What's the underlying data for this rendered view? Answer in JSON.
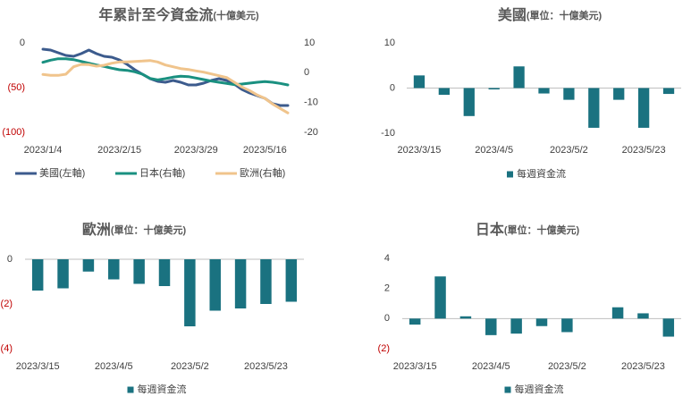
{
  "chart_data": [
    {
      "type": "line",
      "title": "年累計至今資金流",
      "subtitle": "(十億美元)",
      "categories": [
        "2023/1/4",
        null,
        null,
        null,
        null,
        null,
        null,
        null,
        null,
        null,
        "2023/2/15",
        null,
        null,
        null,
        null,
        null,
        null,
        null,
        null,
        null,
        "2023/3/29",
        null,
        null,
        null,
        null,
        null,
        null,
        null,
        null,
        "2023/5/16",
        null,
        null,
        null
      ],
      "series": [
        {
          "name": "美國(左軸)",
          "color": "#3c5b8d",
          "axis": "y",
          "values": [
            -7,
            -8,
            -11,
            -14,
            -15,
            -12,
            -8,
            -12,
            -15,
            -16,
            -19,
            -24,
            -30,
            -35,
            -40,
            -43,
            -44,
            -42,
            -44,
            -47,
            -47,
            -45,
            -42,
            -40,
            -42,
            -46,
            -52,
            -56,
            -59,
            -62,
            -68,
            -70,
            -70
          ]
        },
        {
          "name": "日本(右軸)",
          "color": "#1a9080",
          "axis": "y2",
          "values": [
            3.5,
            4.2,
            4.7,
            4.7,
            4.4,
            3.8,
            3.2,
            2.6,
            2.1,
            1.5,
            1.0,
            0.8,
            0.3,
            -0.5,
            -1.9,
            -2.4,
            -2.0,
            -1.5,
            -1.2,
            -1.3,
            -1.8,
            -2.3,
            -2.8,
            -3.2,
            -3.6,
            -4.0,
            -3.8,
            -3.5,
            -3.2,
            -3.0,
            -3.2,
            -3.6,
            -4.1
          ]
        },
        {
          "name": "歐洲(右軸)",
          "color": "#f0c48c",
          "axis": "y2",
          "values": [
            -0.6,
            -0.9,
            -0.9,
            -0.5,
            2.0,
            2.8,
            2.7,
            2.2,
            2.5,
            3.2,
            3.6,
            3.6,
            3.8,
            3.9,
            4.1,
            3.6,
            2.6,
            2.0,
            1.4,
            1.1,
            0.6,
            0.2,
            -0.4,
            -1.0,
            -1.6,
            -3.2,
            -4.8,
            -6.0,
            -7.5,
            -8.6,
            -10.5,
            -12,
            -13.5
          ]
        }
      ],
      "ylim": [
        -100,
        0
      ],
      "yticks": [
        0,
        {
          "value": -50,
          "label": "(50)"
        },
        {
          "value": -100,
          "label": "(100)"
        }
      ],
      "y2lim": [
        -20,
        10
      ],
      "y2ticks": [
        10,
        0,
        -10,
        -20
      ],
      "negative_tick_color": "#c00000",
      "legend": "bottom"
    },
    {
      "type": "bar",
      "title": "美國",
      "subtitle": "(單位：十億美元)",
      "categories": [
        "2023/3/15",
        null,
        null,
        "2023/4/5",
        null,
        null,
        "2023/5/2",
        null,
        null,
        "2023/5/23",
        null
      ],
      "series": [
        {
          "name": "每週資金流",
          "color": "#1a7280",
          "values": [
            2.8,
            -1.5,
            -6.2,
            -0.3,
            4.8,
            -1.2,
            -2.6,
            -8.8,
            -2.6,
            -8.8,
            -1.3
          ]
        }
      ],
      "ylim": [
        -10,
        10
      ],
      "yticks": [
        10,
        0,
        -10
      ],
      "legend": "bottom"
    },
    {
      "type": "bar",
      "title": "歐洲",
      "subtitle": "(單位：十億美元)",
      "categories": [
        "2023/3/15",
        null,
        null,
        "2023/4/5",
        null,
        null,
        "2023/5/2",
        null,
        null,
        "2023/5/23",
        null
      ],
      "series": [
        {
          "name": "每週資金流",
          "color": "#1a7280",
          "values": [
            -1.4,
            -1.3,
            -0.55,
            -0.9,
            -1.1,
            -1.2,
            -3.0,
            -2.3,
            -2.2,
            -2.0,
            -1.9
          ]
        }
      ],
      "ylim": [
        -4,
        0
      ],
      "yticks": [
        0,
        {
          "value": -2,
          "label": "(2)"
        },
        {
          "value": -4,
          "label": "(4)"
        }
      ],
      "negative_tick_color": "#c00000",
      "legend": "bottom"
    },
    {
      "type": "bar",
      "title": "日本",
      "subtitle": "(單位：十億美元)",
      "categories": [
        "2023/3/15",
        null,
        null,
        "2023/4/5",
        null,
        null,
        "2023/5/2",
        null,
        null,
        "2023/5/23",
        null
      ],
      "series": [
        {
          "name": "每週資金流",
          "color": "#1a7280",
          "values": [
            -0.4,
            2.8,
            0.15,
            -1.1,
            -1.0,
            -0.5,
            -0.9,
            0,
            0.75,
            0.35,
            -1.2
          ]
        }
      ],
      "ylim": [
        -2,
        4
      ],
      "yticks": [
        4,
        2,
        0,
        {
          "value": -2,
          "label": "(2)"
        }
      ],
      "negative_tick_color": "#c00000",
      "legend": "bottom"
    }
  ]
}
